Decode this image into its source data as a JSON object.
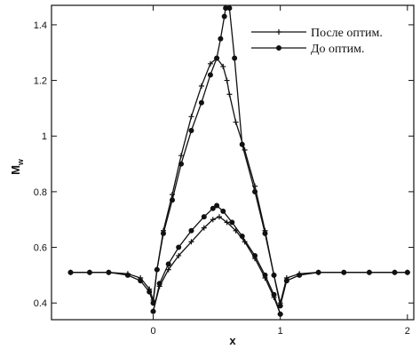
{
  "chart_data": {
    "type": "line",
    "xlabel": "x",
    "ylabel": "M",
    "ylabel_subscript": "w",
    "xlim": [
      -0.8,
      2.05
    ],
    "ylim": [
      0.34,
      1.47
    ],
    "xticks": [
      0,
      1,
      2
    ],
    "yticks": [
      0.4,
      0.6,
      0.8,
      1,
      1.2,
      1.4
    ],
    "ytick_labels": [
      "0.4",
      "0.6",
      "0.8",
      "1",
      "1.2",
      "1.4"
    ],
    "xtick_labels": [
      "0",
      "1",
      "2"
    ],
    "grid": false,
    "legend_position": "top-right",
    "series": [
      {
        "name": "После оптим.",
        "marker": "plus",
        "color": "#111111",
        "upper_x": [
          -0.65,
          -0.5,
          -0.35,
          -0.2,
          -0.1,
          -0.03,
          0.0,
          0.03,
          0.08,
          0.15,
          0.22,
          0.3,
          0.38,
          0.45,
          0.5,
          0.55,
          0.58,
          0.6,
          0.65,
          0.72,
          0.8,
          0.88,
          0.95,
          1.0,
          1.05,
          1.15,
          1.3,
          1.5,
          1.7,
          1.9,
          2.0
        ],
        "upper_y": [
          0.51,
          0.51,
          0.51,
          0.505,
          0.49,
          0.45,
          0.41,
          0.52,
          0.66,
          0.79,
          0.93,
          1.07,
          1.18,
          1.26,
          1.28,
          1.25,
          1.2,
          1.15,
          1.05,
          0.95,
          0.82,
          0.66,
          0.5,
          0.4,
          0.49,
          0.505,
          0.51,
          0.51,
          0.51,
          0.51,
          0.51
        ],
        "lower_x": [
          0.0,
          0.05,
          0.12,
          0.2,
          0.3,
          0.4,
          0.47,
          0.52,
          0.58,
          0.65,
          0.72,
          0.8,
          0.88,
          0.95,
          1.0
        ],
        "lower_y": [
          0.37,
          0.46,
          0.52,
          0.57,
          0.62,
          0.67,
          0.7,
          0.71,
          0.69,
          0.66,
          0.62,
          0.56,
          0.49,
          0.42,
          0.36
        ]
      },
      {
        "name": "До оптим.",
        "marker": "circle",
        "color": "#111111",
        "upper_x": [
          -0.65,
          -0.5,
          -0.35,
          -0.2,
          -0.1,
          -0.03,
          0.0,
          0.03,
          0.08,
          0.15,
          0.22,
          0.3,
          0.38,
          0.45,
          0.5,
          0.53,
          0.56,
          0.57,
          0.6,
          0.64,
          0.7,
          0.8,
          0.88,
          0.95,
          1.0,
          1.05,
          1.15,
          1.3,
          1.5,
          1.7,
          1.9,
          2.0
        ],
        "upper_y": [
          0.51,
          0.51,
          0.51,
          0.5,
          0.48,
          0.44,
          0.4,
          0.52,
          0.65,
          0.77,
          0.9,
          1.02,
          1.12,
          1.22,
          1.28,
          1.35,
          1.43,
          1.46,
          1.46,
          1.28,
          0.97,
          0.8,
          0.65,
          0.5,
          0.39,
          0.48,
          0.5,
          0.51,
          0.51,
          0.51,
          0.51,
          0.51
        ],
        "lower_x": [
          0.0,
          0.05,
          0.12,
          0.2,
          0.3,
          0.4,
          0.47,
          0.5,
          0.55,
          0.62,
          0.7,
          0.8,
          0.88,
          0.95,
          1.0
        ],
        "lower_y": [
          0.37,
          0.47,
          0.54,
          0.6,
          0.66,
          0.71,
          0.74,
          0.75,
          0.73,
          0.69,
          0.64,
          0.57,
          0.5,
          0.43,
          0.36
        ]
      }
    ]
  }
}
